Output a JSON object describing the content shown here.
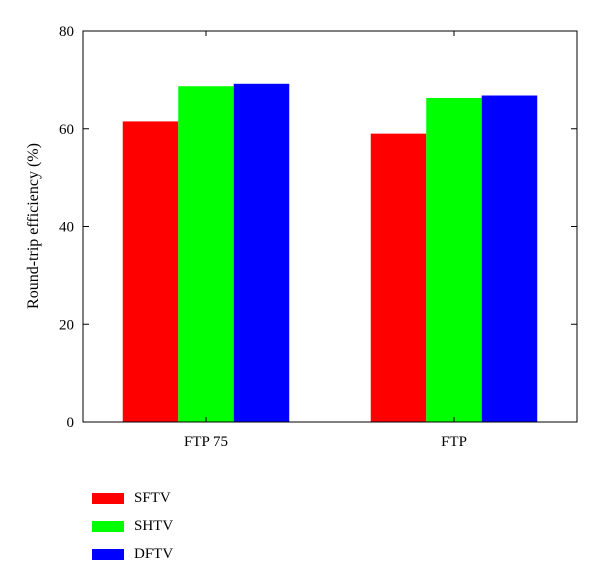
{
  "chart_data": {
    "type": "bar",
    "categories": [
      "FTP 75",
      "FTP"
    ],
    "series": [
      {
        "name": "SFTV",
        "color": "#ff0000",
        "values": [
          61.5,
          59
        ]
      },
      {
        "name": "SHTV",
        "color": "#00ff00",
        "values": [
          68.7,
          66.3
        ]
      },
      {
        "name": "DFTV",
        "color": "#0000ff",
        "values": [
          69.2,
          66.8
        ]
      }
    ],
    "title": "",
    "xlabel": "",
    "ylabel": "Round-trip efficiency (%)",
    "ylim": [
      0,
      80
    ],
    "yticks": [
      "0",
      "20",
      "40",
      "60",
      "80"
    ],
    "grid": false,
    "legend_position": "bottom-left"
  }
}
